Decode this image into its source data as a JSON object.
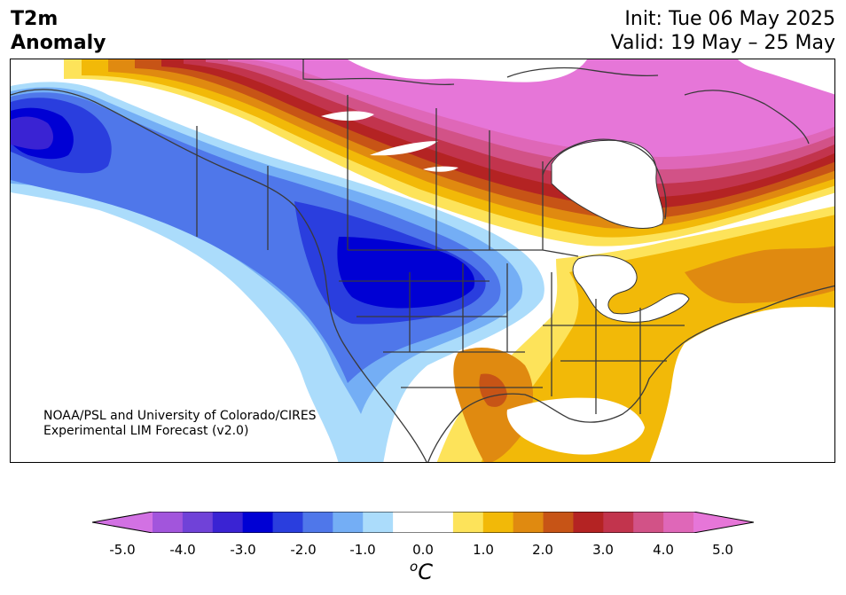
{
  "title": {
    "left_line1": "T2m",
    "left_line2": "Anomaly",
    "right_line1": "Init: Tue 06 May 2025",
    "right_line2": "Valid: 19 May – 25 May"
  },
  "credit": {
    "line1": "NOAA/PSL and University of Colorado/CIRES",
    "line2": "Experimental LIM Forecast (v2.0)"
  },
  "colorbar": {
    "unit_sup": "o",
    "unit_main": "C",
    "tick_labels": [
      "-5.0",
      "-4.0",
      "-3.0",
      "-2.0",
      "-1.0",
      "0.0",
      "1.0",
      "2.0",
      "3.0",
      "4.0",
      "5.0"
    ],
    "colors": [
      "#d271e3",
      "#a255dc",
      "#7042d8",
      "#3a23d3",
      "#0000d4",
      "#2a3ede",
      "#4f77ea",
      "#74aef5",
      "#abdcfb",
      "#ffffff",
      "#ffffff",
      "#fde35a",
      "#f2b908",
      "#e08a10",
      "#c75416",
      "#b42323",
      "#c2344d",
      "#d25287",
      "#df67b8",
      "#e676d8"
    ]
  },
  "map": {
    "region": "North America",
    "anomaly_features": [
      {
        "name": "canada-arctic-warm",
        "value": "4.0 to 5.0"
      },
      {
        "name": "northern-rockies-cold",
        "value": "-3.0 to -2.0"
      },
      {
        "name": "alaska-cold",
        "value": "-3.0 to -2.0"
      },
      {
        "name": "eastern-us-warm",
        "value": "1.0 to 2.0"
      },
      {
        "name": "texas-warm",
        "value": "2.0 to 3.0"
      }
    ]
  }
}
